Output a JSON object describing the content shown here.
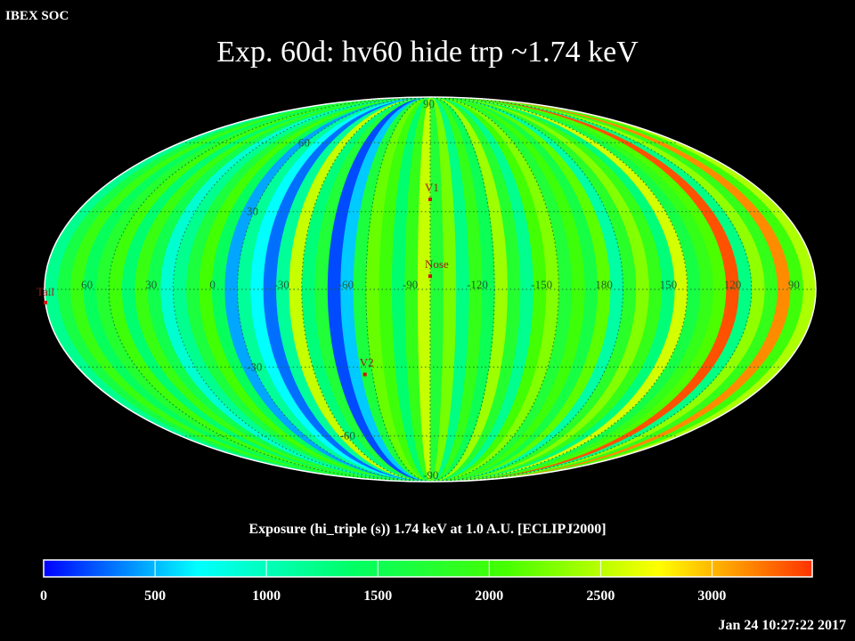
{
  "header": {
    "corner_label": "IBEX SOC",
    "title": "Exp.   60d: hv60 hide trp ~1.74 keV"
  },
  "colorbar": {
    "title": "Exposure (hi_triple (s))  1.74 keV at 1.0 A.U. [ECLIPJ2000]",
    "ticks": [
      "0",
      "500",
      "1000",
      "1500",
      "2000",
      "2500",
      "3000"
    ],
    "tick_values": [
      0,
      500,
      1000,
      1500,
      2000,
      2500,
      3000
    ],
    "range": [
      0,
      3450
    ],
    "colors": [
      "#0000ff",
      "#00ffff",
      "#00ff66",
      "#44ff00",
      "#ffff00",
      "#ff3300"
    ]
  },
  "footer": {
    "timestamp": "Jan 24 10:27:22 2017"
  },
  "chart_data": {
    "type": "heatmap",
    "projection": "mollweide",
    "coordinate_frame": "ECLIPJ2000",
    "value_range": [
      0,
      3450
    ],
    "lon_grid_labels": [
      "60",
      "30",
      "0",
      "-30",
      "-60",
      "-90",
      "-120",
      "-150",
      "180",
      "150",
      "120",
      "90"
    ],
    "lat_grid_labels": [
      "90",
      "60",
      "30",
      "-30",
      "-60",
      "-90"
    ],
    "markers": [
      {
        "label": "V1",
        "lon": -105,
        "lat": 35
      },
      {
        "label": "Nose",
        "lon": -105,
        "lat": 5
      },
      {
        "label": "V2",
        "lon": -71,
        "lat": -33
      },
      {
        "label": "Tail",
        "lon": 75,
        "lat": -5
      }
    ],
    "strip_width_deg": 6,
    "strip_values": [
      2450,
      2000,
      3150,
      1900,
      2350,
      1250,
      3350,
      2100,
      1900,
      1600,
      2600,
      1300,
      1900,
      2300,
      1800,
      1100,
      2150,
      1600,
      2000,
      1700,
      2300,
      2050,
      1200,
      1750,
      2400,
      1500,
      1900,
      1250,
      2250,
      1700,
      2550,
      1900,
      1350,
      2000,
      2200,
      1650,
      550,
      200,
      1700,
      1300,
      2550,
      1150,
      300,
      700,
      1150,
      450,
      1450,
      2050,
      1650,
      1200,
      900,
      1550,
      1950,
      1350,
      2000,
      1750,
      1450,
      1950,
      1600,
      1200
    ]
  }
}
